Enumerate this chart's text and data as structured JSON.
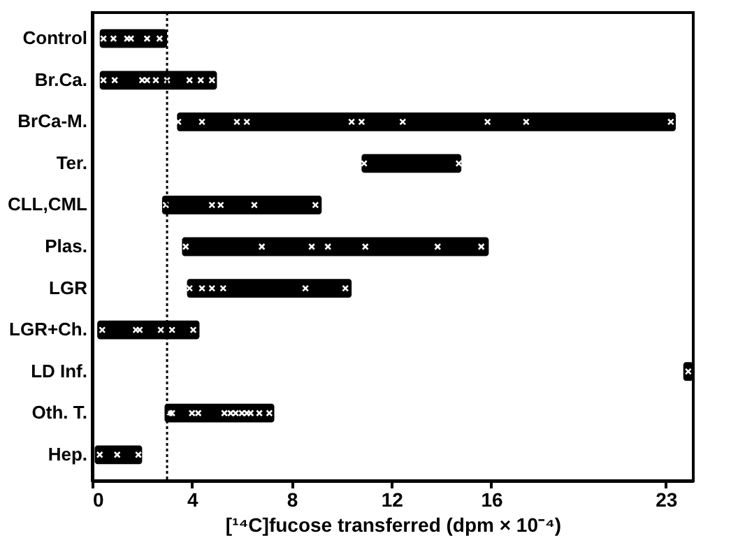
{
  "chart_data": {
    "type": "bar",
    "orientation": "horizontal",
    "xlabel": "[¹⁴C]fucose transferred (dpm × 10⁻⁴)",
    "categories": [
      "Control",
      "Br.Ca.",
      "BrCa-M.",
      "Ter.",
      "CLL,CML",
      "Plas.",
      "LGR",
      "LGR+Ch.",
      "LD Inf.",
      "Oth. T.",
      "Hep."
    ],
    "xlim": [
      0,
      24.1
    ],
    "xticks": [
      0,
      4,
      8,
      12,
      16,
      23
    ],
    "grid": false,
    "marker": "cross",
    "ref_lines": [
      {
        "axis": "x",
        "value": 3,
        "line_style": "dotted",
        "color": "#000000"
      }
    ],
    "series": [
      {
        "color": "#000000",
        "base": [
          0.3,
          0.3,
          3.4,
          10.8,
          2.8,
          3.6,
          3.8,
          0.2,
          23.7,
          2.9,
          0.1
        ],
        "values": [
          2.7,
          4.7,
          20.0,
          4.0,
          6.4,
          12.3,
          6.6,
          4.1,
          0.4,
          4.4,
          1.9
        ]
      },
      {
        "type": "scatter",
        "color": "#ffffff",
        "x": [
          "Control",
          "Control",
          "Control",
          "Control",
          "Control",
          "Control",
          "Br.Ca.",
          "Br.Ca.",
          "Br.Ca.",
          "Br.Ca.",
          "Br.Ca.",
          "Br.Ca.",
          "Br.Ca.",
          "Br.Ca.",
          "Br.Ca.",
          "BrCa-M.",
          "BrCa-M.",
          "BrCa-M.",
          "BrCa-M.",
          "BrCa-M.",
          "BrCa-M.",
          "BrCa-M.",
          "BrCa-M.",
          "BrCa-M.",
          "BrCa-M.",
          "Ter.",
          "Ter.",
          "CLL,CML",
          "CLL,CML",
          "CLL,CML",
          "CLL,CML",
          "CLL,CML",
          "Plas.",
          "Plas.",
          "Plas.",
          "Plas.",
          "Plas.",
          "Plas.",
          "Plas.",
          "LGR",
          "LGR",
          "LGR",
          "LGR",
          "LGR",
          "LGR",
          "LGR+Ch.",
          "LGR+Ch.",
          "LGR+Ch.",
          "LGR+Ch.",
          "LGR+Ch.",
          "LGR+Ch.",
          "LD Inf.",
          "Oth. T.",
          "Oth. T.",
          "Oth. T.",
          "Oth. T.",
          "Oth. T.",
          "Oth. T.",
          "Oth. T.",
          "Oth. T.",
          "Oth. T.",
          "Oth. T.",
          "Oth. T.",
          "Oth. T.",
          "Hep.",
          "Hep.",
          "Hep."
        ],
        "values": [
          0.45,
          0.85,
          1.4,
          1.55,
          2.2,
          2.7,
          0.45,
          0.9,
          2.0,
          2.2,
          2.55,
          3.0,
          3.9,
          4.35,
          4.8,
          3.45,
          4.4,
          5.8,
          6.2,
          10.4,
          10.8,
          12.45,
          15.85,
          17.4,
          23.2,
          10.9,
          14.7,
          2.95,
          4.8,
          5.15,
          6.5,
          8.95,
          3.75,
          6.8,
          8.8,
          9.45,
          10.95,
          13.85,
          15.6,
          3.9,
          4.4,
          4.8,
          5.25,
          8.55,
          10.15,
          0.4,
          1.75,
          1.9,
          2.75,
          3.2,
          4.05,
          23.9,
          3.1,
          3.2,
          4.0,
          4.25,
          5.3,
          5.55,
          5.75,
          6.0,
          6.2,
          6.35,
          6.7,
          7.1,
          0.3,
          1.0,
          1.85
        ]
      }
    ]
  }
}
